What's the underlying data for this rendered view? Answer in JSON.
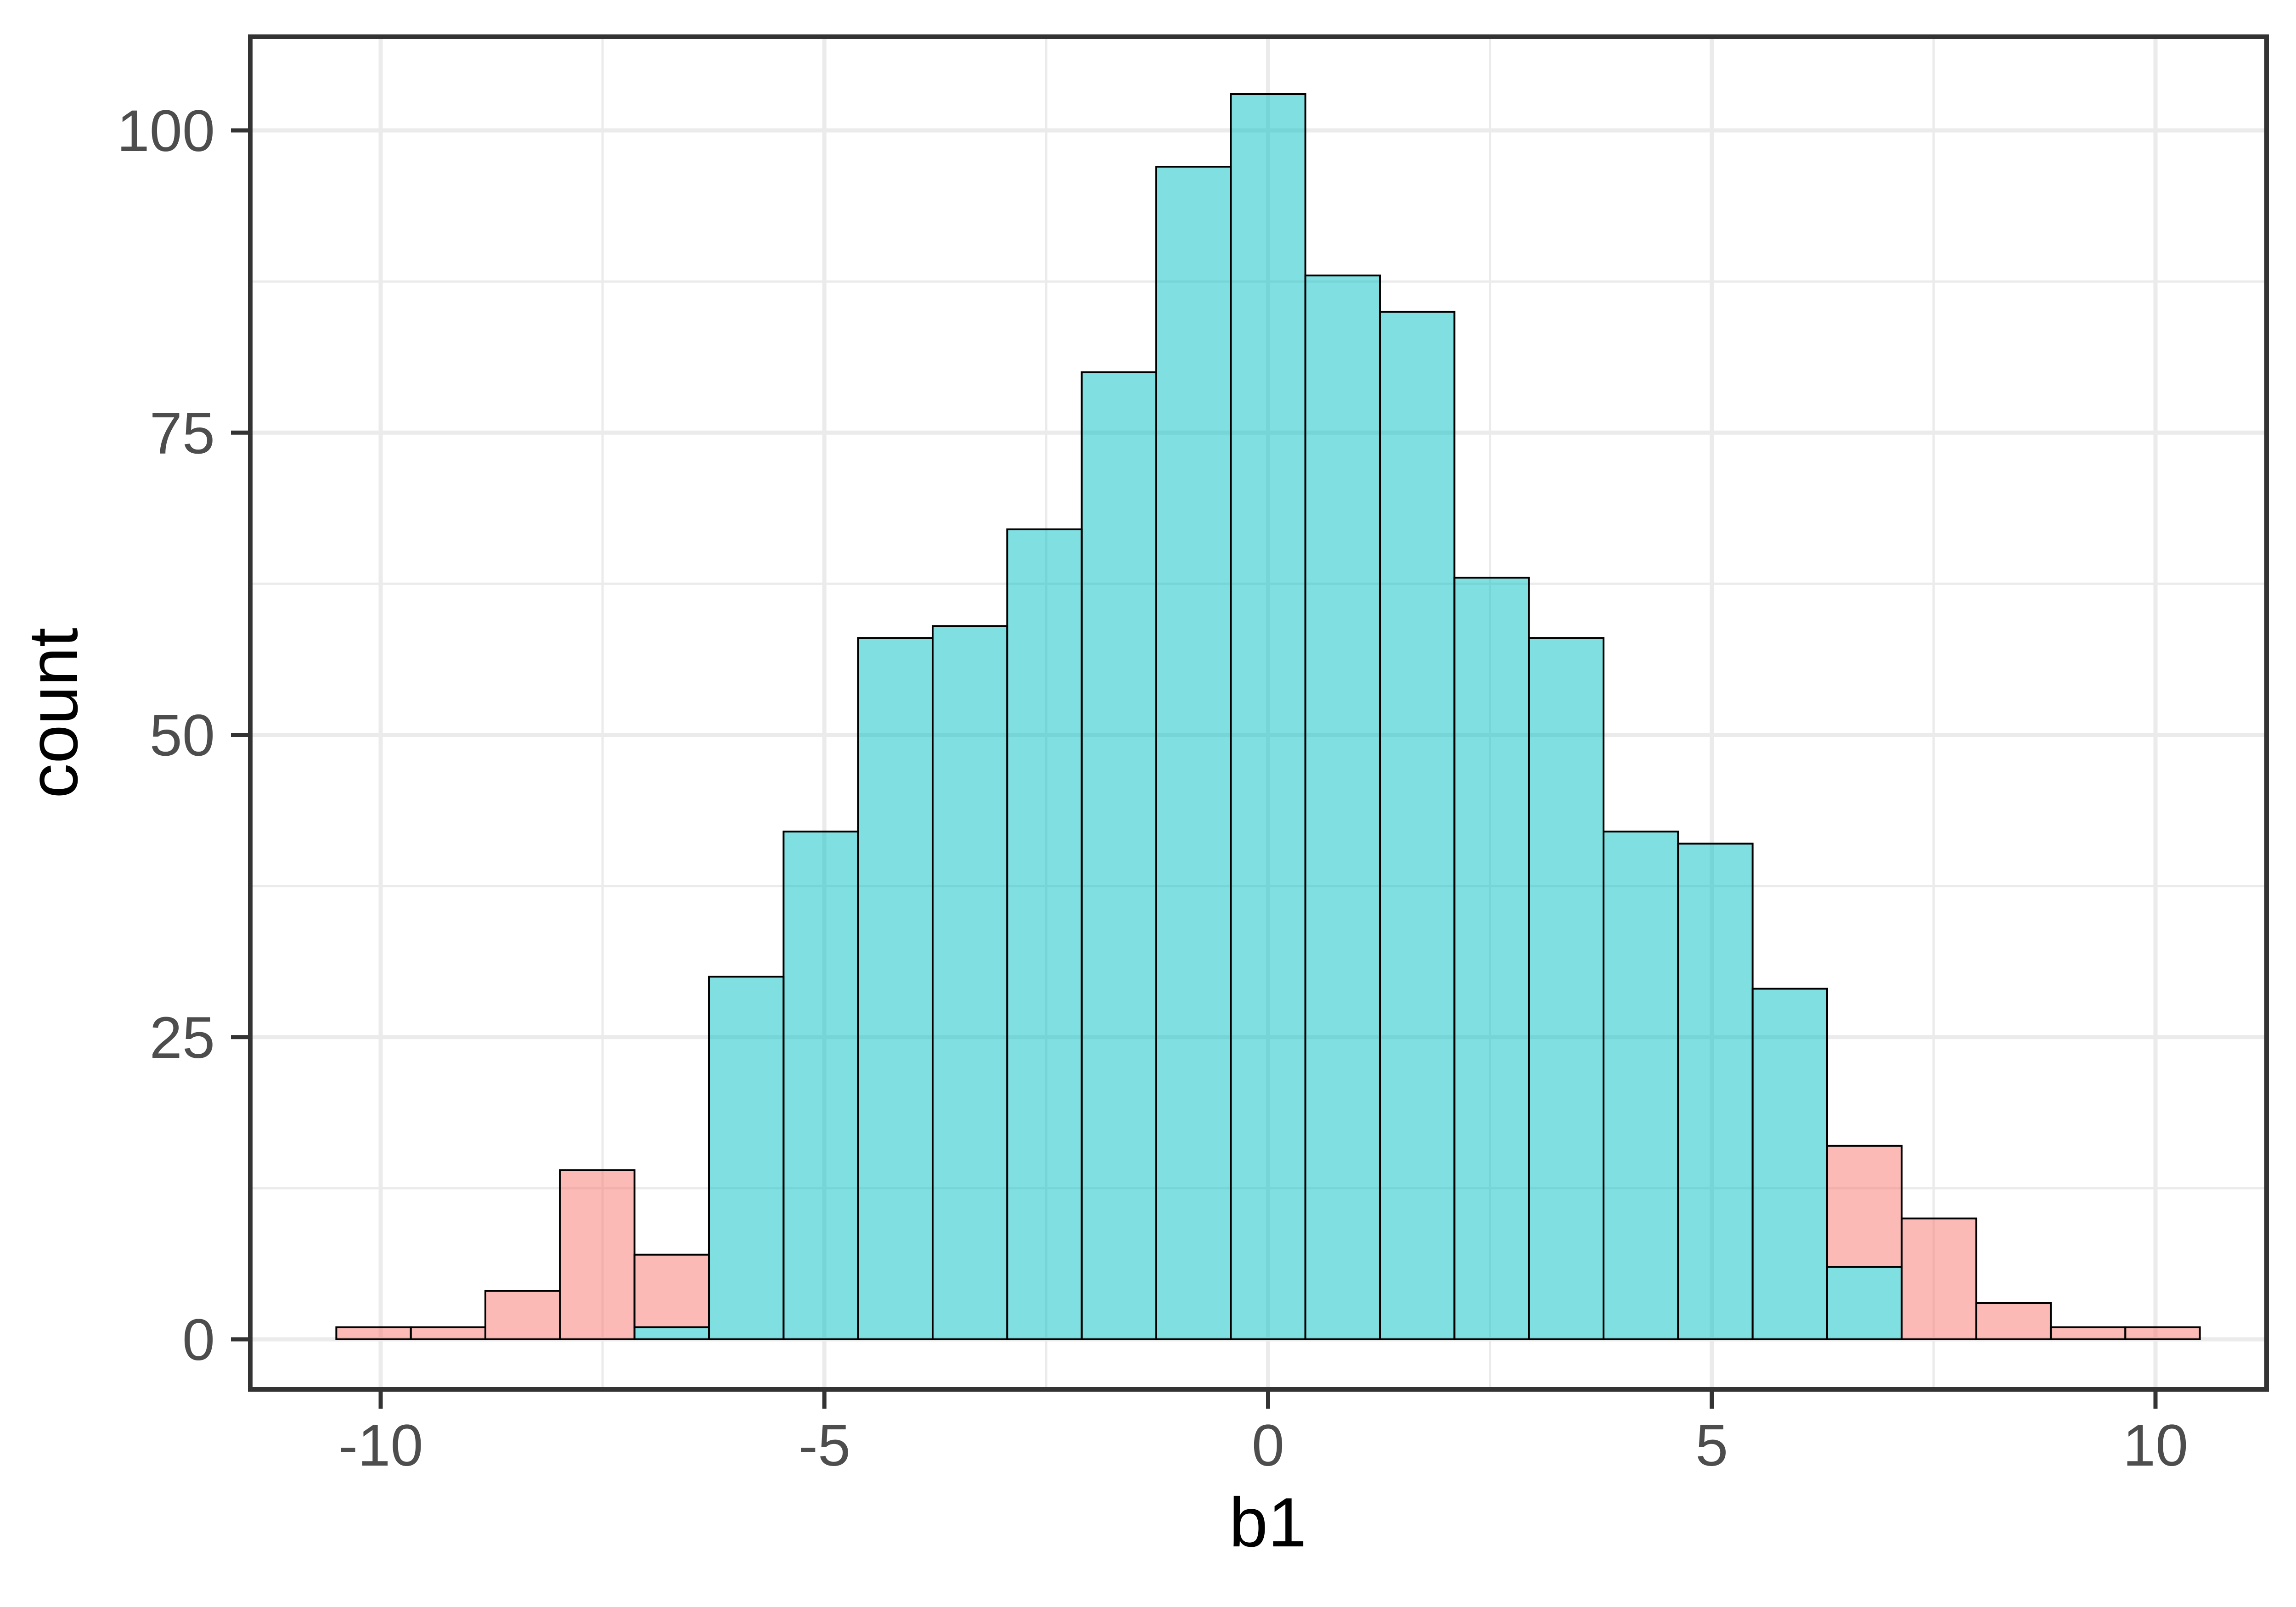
{
  "chart_data": {
    "type": "bar",
    "subtype": "stacked-histogram",
    "title": "",
    "xlabel": "b1",
    "ylabel": "count",
    "legend": "none",
    "grid": "on",
    "xlim": [
      -11.55,
      11.55
    ],
    "ylim": [
      -4.1,
      107.7
    ],
    "bin_width": 0.84,
    "bin_edges": [
      -10.5,
      -9.66,
      -8.82,
      -7.98,
      -7.14,
      -6.3,
      -5.46,
      -4.62,
      -3.78,
      -2.94,
      -2.1,
      -1.26,
      -0.42,
      0.42,
      1.26,
      2.1,
      2.94,
      3.78,
      4.62,
      5.46,
      6.3,
      7.14,
      7.98,
      8.82,
      9.66,
      10.5
    ],
    "series": [
      {
        "name": "teal",
        "color": "#00BFC4",
        "fill_opacity": 0.5,
        "stack_position": "bottom",
        "counts": [
          0,
          0,
          0,
          0,
          1,
          30,
          42,
          58,
          59,
          67,
          80,
          97,
          103,
          88,
          85,
          63,
          58,
          42,
          41,
          29,
          6,
          0,
          0,
          0,
          0
        ]
      },
      {
        "name": "pink",
        "color": "#F8766D",
        "fill_opacity": 0.5,
        "stack_position": "top",
        "counts": [
          1,
          1,
          4,
          14,
          6,
          0,
          0,
          0,
          0,
          0,
          0,
          0,
          0,
          0,
          0,
          0,
          0,
          0,
          0,
          0,
          10,
          10,
          3,
          1,
          1
        ]
      }
    ],
    "x_ticks": {
      "values": [
        -10,
        -5,
        0,
        5,
        10
      ],
      "labels": [
        "-10",
        "-5",
        "0",
        "5",
        "10"
      ]
    },
    "y_ticks": {
      "values": [
        0,
        25,
        50,
        75,
        100
      ],
      "labels": [
        "0",
        "25",
        "50",
        "75",
        "100"
      ]
    },
    "x_minor": [
      -7.5,
      -2.5,
      2.5,
      7.5
    ],
    "y_minor": [
      12.5,
      37.5,
      62.5,
      87.5
    ],
    "colors": {
      "teal_fill_base": "#00BFC4",
      "pink_fill_base": "#F8766D",
      "teal_rendered_on_white": "#80DFE1",
      "pink_rendered_on_white": "#FBBAB6",
      "bar_border": "#000000",
      "gridline": "#EBEBEB",
      "panel_border": "#333333",
      "tick_mark": "#333333",
      "tick_label": "#4D4D4D",
      "axis_title": "#000000",
      "background": "#FFFFFF"
    }
  }
}
